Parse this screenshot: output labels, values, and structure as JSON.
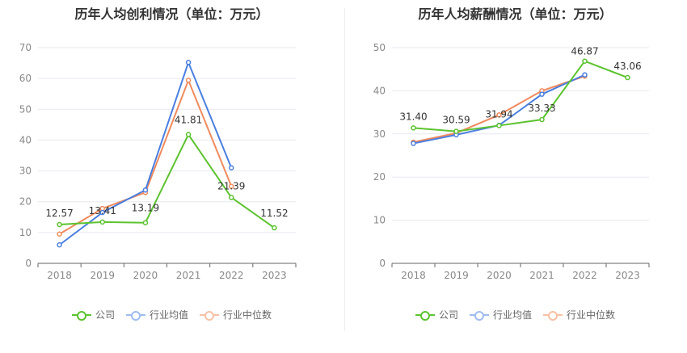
{
  "charts": [
    {
      "title": "历年人均创利情况（单位：万元）",
      "legend": [
        "公司",
        "行业均值",
        "行业中位数"
      ]
    },
    {
      "title": "历年人均薪酬情况（单位：万元）",
      "legend": [
        "公司",
        "行业均值",
        "行业中位数"
      ]
    }
  ],
  "chart_data": [
    {
      "type": "line",
      "title": "历年人均创利情况（单位：万元）",
      "categories": [
        "2018",
        "2019",
        "2020",
        "2021",
        "2022",
        "2023"
      ],
      "ylim": [
        0,
        70
      ],
      "yticks": [
        0,
        10,
        20,
        30,
        40,
        50,
        60,
        70
      ],
      "grid": true,
      "legend_position": "bottom",
      "series": [
        {
          "name": "公司",
          "color": "#5cc32f",
          "values": [
            12.57,
            13.41,
            13.19,
            41.81,
            21.39,
            11.52
          ],
          "labels": [
            "12.57",
            "13.41",
            "13.19",
            "41.81",
            "21.39",
            "11.52"
          ]
        },
        {
          "name": "行业均值",
          "color": "#4a7ee0",
          "values": [
            6.0,
            16.5,
            23.8,
            65.2,
            31.0,
            null
          ]
        },
        {
          "name": "行业中位数",
          "color": "#f08a5d",
          "values": [
            9.5,
            17.8,
            23.0,
            59.4,
            25.0,
            null
          ]
        }
      ]
    },
    {
      "type": "line",
      "title": "历年人均薪酬情况（单位：万元）",
      "categories": [
        "2018",
        "2019",
        "2020",
        "2021",
        "2022",
        "2023"
      ],
      "ylim": [
        0,
        50
      ],
      "yticks": [
        0,
        10,
        20,
        30,
        40,
        50
      ],
      "grid": true,
      "legend_position": "bottom",
      "series": [
        {
          "name": "公司",
          "color": "#5cc32f",
          "values": [
            31.4,
            30.59,
            31.94,
            33.33,
            46.87,
            43.06
          ],
          "labels": [
            "31.40",
            "30.59",
            "31.94",
            "33.33",
            "46.87",
            "43.06"
          ]
        },
        {
          "name": "行业均值",
          "color": "#4a7ee0",
          "values": [
            27.8,
            29.8,
            32.0,
            39.2,
            43.7,
            null
          ]
        },
        {
          "name": "行业中位数",
          "color": "#f08a5d",
          "values": [
            28.1,
            30.2,
            34.4,
            40.0,
            43.4,
            null
          ]
        }
      ]
    }
  ]
}
